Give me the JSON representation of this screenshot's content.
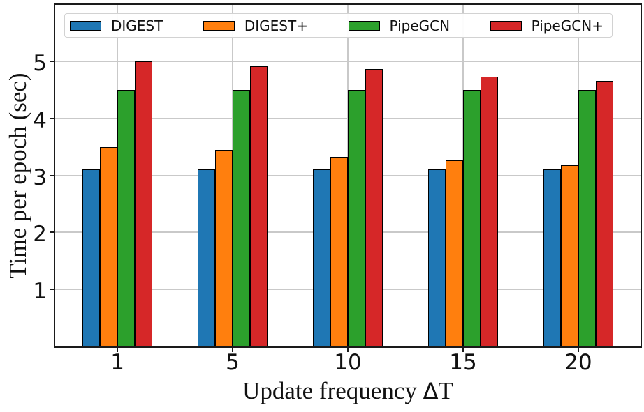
{
  "chart_data": {
    "type": "bar",
    "title": "",
    "categories": [
      "1",
      "5",
      "10",
      "15",
      "20"
    ],
    "series": [
      {
        "name": "DIGEST",
        "color": "#1f77b4",
        "values": [
          3.1,
          3.1,
          3.1,
          3.1,
          3.1
        ]
      },
      {
        "name": "DIGEST+",
        "color": "#ff7f0e",
        "values": [
          3.5,
          3.45,
          3.33,
          3.26,
          3.18
        ]
      },
      {
        "name": "PipeGCN",
        "color": "#2ca02c",
        "values": [
          4.5,
          4.5,
          4.5,
          4.5,
          4.5
        ]
      },
      {
        "name": "PipeGCN+",
        "color": "#d62728",
        "values": [
          5.0,
          4.92,
          4.86,
          4.73,
          4.66
        ]
      }
    ],
    "xlabel": "Update frequency ΔT",
    "xlabel_parts": {
      "prefix": "Update frequency ",
      "delta": "Δ",
      "suffix": "T"
    },
    "ylabel": "Time per epoch (sec)",
    "yticks": [
      "1",
      "2",
      "3",
      "4",
      "5"
    ],
    "ylim": [
      0,
      5.99
    ],
    "grid": "both",
    "grid_color": "#c9c9c9",
    "bar_edge_color": "#000000",
    "legend": {
      "position": "top",
      "labels": [
        "DIGEST",
        "DIGEST+",
        "PipeGCN",
        "PipeGCN+"
      ]
    }
  }
}
